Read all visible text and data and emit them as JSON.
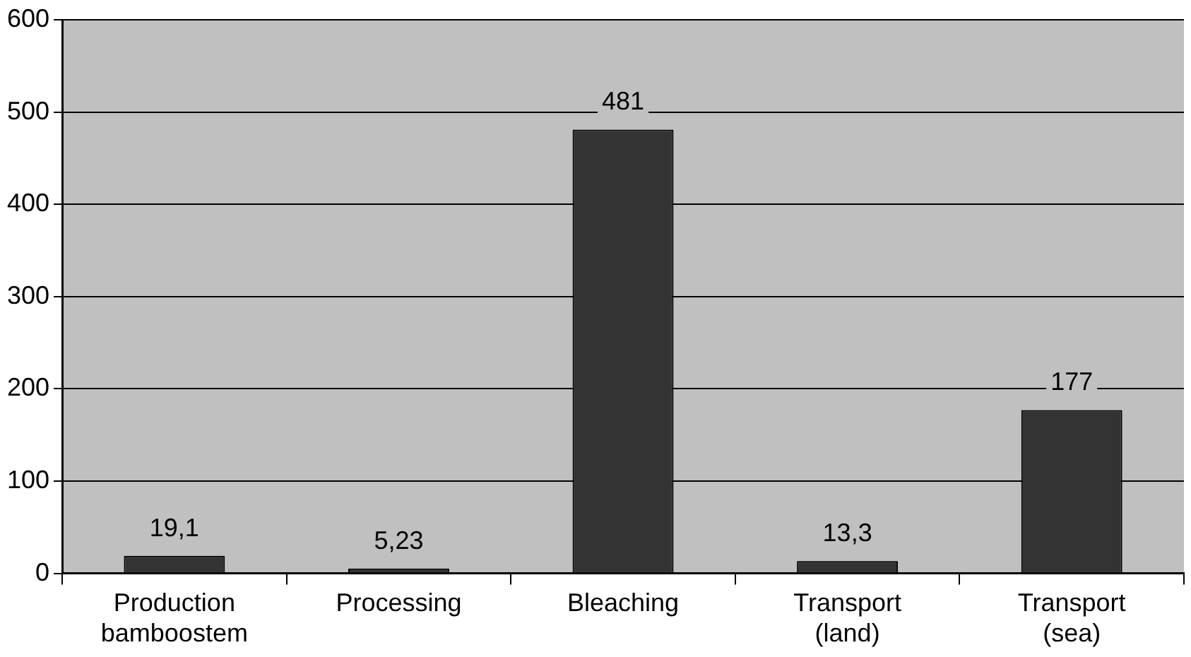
{
  "chart_data": {
    "type": "bar",
    "categories": [
      "Production bamboostem",
      "Processing",
      "Bleaching",
      "Transport (land)",
      "Transport (sea)"
    ],
    "values": [
      19.1,
      5.23,
      481,
      13.3,
      177
    ],
    "value_labels": [
      "19,1",
      "5,23",
      "481",
      "13,3",
      "177"
    ],
    "color": "#333333",
    "ylim": [
      0,
      600
    ],
    "yticks": [
      0,
      100,
      200,
      300,
      400,
      500,
      600
    ],
    "grid": "y",
    "legend": false
  }
}
